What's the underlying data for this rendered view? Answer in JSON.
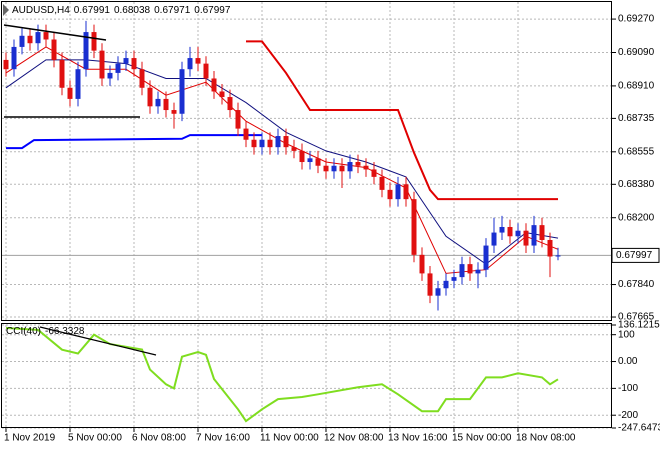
{
  "chart_data": [
    {
      "type": "candlestick",
      "title": "AUDUSD,H4",
      "categories": [
        "1 Nov 2019",
        null,
        null,
        null,
        null,
        null,
        null,
        null,
        "5 Nov 00:00",
        null,
        null,
        null,
        null,
        null,
        null,
        null,
        "6 Nov 08:00",
        null,
        null,
        null,
        null,
        null,
        null,
        null,
        "7 Nov 16:00",
        null,
        null,
        null,
        null,
        null,
        null,
        null,
        "11 Nov 00:00",
        null,
        null,
        null,
        null,
        null,
        null,
        null,
        "12 Nov 08:00",
        null,
        null,
        null,
        null,
        null,
        null,
        null,
        "13 Nov 16:00",
        null,
        null,
        null,
        null,
        null,
        null,
        null,
        "15 Nov 00:00",
        null,
        null,
        null,
        null,
        null,
        null,
        null,
        "18 Nov 08:00",
        null,
        null,
        null,
        null,
        null
      ],
      "open": [
        0.6905,
        0.69,
        0.6912,
        0.6918,
        0.6914,
        0.692,
        0.6916,
        0.6905,
        0.689,
        0.6884,
        0.69,
        0.692,
        0.691,
        0.6895,
        0.6898,
        0.6903,
        0.6906,
        0.69,
        0.689,
        0.688,
        0.6884,
        0.6878,
        0.6876,
        0.69,
        0.6906,
        0.6903,
        0.6895,
        0.6888,
        0.6885,
        0.6878,
        0.6868,
        0.6862,
        0.6858,
        0.6862,
        0.6858,
        0.6864,
        0.6858,
        0.6856,
        0.685,
        0.6852,
        0.6848,
        0.6845,
        0.6848,
        0.6845,
        0.685,
        0.6848,
        0.6846,
        0.6842,
        0.6835,
        0.683,
        0.6838,
        0.683,
        0.68,
        0.679,
        0.6778,
        0.6782,
        0.6786,
        0.6788,
        0.6795,
        0.679,
        0.6792,
        0.6805,
        0.6812,
        0.6815,
        0.681,
        0.6813,
        0.6805,
        0.6816,
        0.6808,
        0.67991
      ],
      "high": [
        0.6909,
        0.6916,
        0.6922,
        0.6922,
        0.6924,
        0.6924,
        0.692,
        0.6909,
        0.6894,
        0.6904,
        0.6926,
        0.6924,
        0.6914,
        0.6902,
        0.6907,
        0.691,
        0.691,
        0.6904,
        0.6894,
        0.6888,
        0.6888,
        0.6882,
        0.6904,
        0.6912,
        0.6912,
        0.6907,
        0.6899,
        0.6892,
        0.6889,
        0.6882,
        0.6872,
        0.6866,
        0.6866,
        0.6866,
        0.6868,
        0.6868,
        0.6862,
        0.686,
        0.6856,
        0.6856,
        0.6852,
        0.6852,
        0.6852,
        0.6854,
        0.6854,
        0.6852,
        0.685,
        0.6846,
        0.6839,
        0.6842,
        0.6842,
        0.6834,
        0.6804,
        0.6794,
        0.6786,
        0.679,
        0.6792,
        0.6799,
        0.6799,
        0.6796,
        0.6809,
        0.682,
        0.6821,
        0.6819,
        0.6817,
        0.6817,
        0.6821,
        0.682,
        0.6812,
        0.68038
      ],
      "low": [
        0.6896,
        0.6896,
        0.6908,
        0.691,
        0.691,
        0.6912,
        0.6901,
        0.6886,
        0.688,
        0.688,
        0.6896,
        0.6906,
        0.6891,
        0.6891,
        0.6894,
        0.6899,
        0.6896,
        0.6886,
        0.6876,
        0.6876,
        0.6874,
        0.6868,
        0.6872,
        0.6896,
        0.6899,
        0.6891,
        0.6884,
        0.6881,
        0.6874,
        0.6864,
        0.6858,
        0.6854,
        0.6854,
        0.6854,
        0.6854,
        0.6854,
        0.6852,
        0.6846,
        0.6846,
        0.6844,
        0.6841,
        0.6841,
        0.6836,
        0.6841,
        0.6844,
        0.6842,
        0.6838,
        0.6831,
        0.6826,
        0.6826,
        0.6826,
        0.6796,
        0.6786,
        0.6774,
        0.677,
        0.6778,
        0.6782,
        0.6784,
        0.6786,
        0.6782,
        0.6788,
        0.6801,
        0.6808,
        0.6806,
        0.6806,
        0.6801,
        0.6801,
        0.6804,
        0.6788,
        0.67971
      ],
      "close": [
        0.69,
        0.6912,
        0.6918,
        0.6914,
        0.692,
        0.6916,
        0.6905,
        0.689,
        0.6884,
        0.69,
        0.692,
        0.691,
        0.6895,
        0.6898,
        0.6903,
        0.6906,
        0.69,
        0.689,
        0.688,
        0.6884,
        0.6878,
        0.6876,
        0.69,
        0.6906,
        0.6903,
        0.6895,
        0.6888,
        0.6885,
        0.6878,
        0.6868,
        0.6862,
        0.6858,
        0.6862,
        0.6858,
        0.6864,
        0.6858,
        0.6856,
        0.685,
        0.6852,
        0.6848,
        0.6845,
        0.6848,
        0.6845,
        0.685,
        0.6848,
        0.6846,
        0.6842,
        0.6835,
        0.683,
        0.6838,
        0.683,
        0.68,
        0.679,
        0.6778,
        0.6782,
        0.6786,
        0.6788,
        0.6795,
        0.679,
        0.6792,
        0.6805,
        0.6812,
        0.6815,
        0.681,
        0.6813,
        0.6805,
        0.6816,
        0.6808,
        0.67991,
        0.67997
      ],
      "up_color": "#1a2fd0",
      "down_color": "#e01010",
      "series": [
        {
          "color": "#e00000",
          "width": 1,
          "x": [
            0,
            5,
            10,
            15,
            20,
            25,
            30,
            35,
            40,
            45,
            50,
            55,
            60,
            65,
            69
          ],
          "values": [
            0.6898,
            0.6912,
            0.69,
            0.69,
            0.6886,
            0.6893,
            0.6872,
            0.686,
            0.685,
            0.6847,
            0.6836,
            0.679,
            0.6792,
            0.681,
            0.6803
          ]
        },
        {
          "color": "#10107f",
          "width": 1,
          "x": [
            0,
            5,
            10,
            15,
            20,
            25,
            30,
            35,
            40,
            45,
            50,
            55,
            60,
            65,
            69
          ],
          "values": [
            0.689,
            0.6905,
            0.6905,
            0.6903,
            0.6895,
            0.6895,
            0.6882,
            0.6866,
            0.6856,
            0.685,
            0.6842,
            0.681,
            0.6795,
            0.6812,
            0.6809
          ]
        },
        {
          "color": "#0000ff",
          "width": 2,
          "x": [
            0,
            2,
            3.5,
            22,
            23,
            32
          ],
          "values": [
            0.68575,
            0.68575,
            0.68618,
            0.68625,
            0.68645,
            0.68645
          ]
        },
        {
          "color": "#e00000",
          "width": 2,
          "x": [
            30,
            32,
            35,
            38,
            49,
            51,
            53,
            54,
            69
          ],
          "values": [
            0.6915,
            0.6915,
            0.6898,
            0.6878,
            0.6878,
            0.6855,
            0.6835,
            0.683,
            0.683
          ]
        }
      ],
      "ylim": [
        0.67649,
        0.69362
      ],
      "yticks": [
        {
          "value": 0.6927,
          "label": "0.69270"
        },
        {
          "value": 0.6909,
          "label": "0.69090"
        },
        {
          "value": 0.6891,
          "label": "0.68910"
        },
        0.68735,
        0.68555,
        {
          "value": 0.6838,
          "label": "0.68380"
        },
        {
          "value": 0.682,
          "label": "0.68200"
        },
        {
          "value": 0.6784,
          "label": "0.67840"
        },
        0.67665
      ],
      "grid": true
    },
    {
      "type": "line",
      "title": "CCI(40)",
      "series": [
        {
          "color": "#7fdd1f",
          "width": 2,
          "x": [
            0,
            4,
            7,
            9,
            11,
            13,
            17,
            18,
            20,
            21,
            22,
            24,
            25,
            26,
            29,
            30,
            32,
            34,
            37,
            39,
            44,
            47,
            49,
            52,
            54,
            55,
            58,
            60,
            62,
            64,
            67,
            68,
            69
          ],
          "values": [
            125,
            118,
            44,
            30,
            100,
            65,
            45,
            -30,
            -85,
            -100,
            18,
            35,
            25,
            -65,
            -178,
            -222,
            -178,
            -140,
            -132,
            -122,
            -96,
            -85,
            -122,
            -185,
            -185,
            -140,
            -140,
            -59,
            -59,
            -44,
            -59,
            -85,
            -66.3328
          ]
        }
      ],
      "ylim": [
        -247.6473,
        136.1215
      ],
      "yticks": [
        136.1215,
        100,
        {
          "value": 0,
          "label": "0.00"
        },
        -100,
        -200,
        -247.6473
      ],
      "grid": true
    }
  ]
}
